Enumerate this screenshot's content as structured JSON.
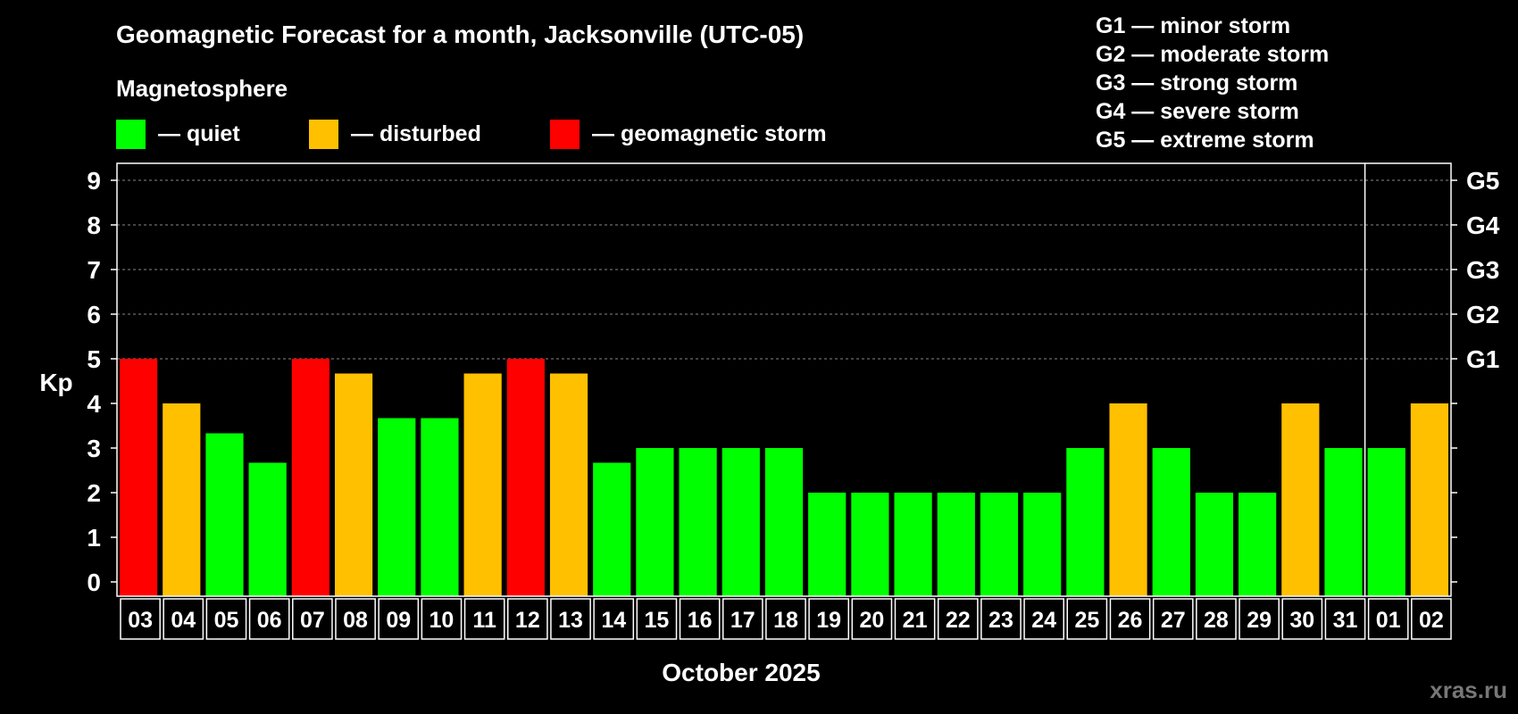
{
  "title": "Geomagnetic Forecast for a month, Jacksonville (UTC-05)",
  "legend_heading": "Magnetosphere",
  "legend": [
    {
      "label": "— quiet",
      "color": "#00ff00"
    },
    {
      "label": "— disturbed",
      "color": "#ffc000"
    },
    {
      "label": "— geomagnetic storm",
      "color": "#ff0000"
    }
  ],
  "g_scale": [
    "G1 — minor storm",
    "G2 — moderate storm",
    "G3 — strong storm",
    "G4 — severe storm",
    "G5 — extreme storm"
  ],
  "watermark": "xras.ru",
  "chart_data": {
    "type": "bar",
    "title": "Geomagnetic Forecast for a month, Jacksonville (UTC-05)",
    "xlabel": "October 2025",
    "ylabel": "Kp",
    "ylim": [
      0,
      9
    ],
    "yticks": [
      "0",
      "1",
      "2",
      "3",
      "4",
      "5",
      "6",
      "7",
      "8",
      "9"
    ],
    "right_axis_labels": [
      {
        "value": 5,
        "label": "G1"
      },
      {
        "value": 6,
        "label": "G2"
      },
      {
        "value": 7,
        "label": "G3"
      },
      {
        "value": 8,
        "label": "G4"
      },
      {
        "value": 9,
        "label": "G5"
      }
    ],
    "grid": "dashed horizontal at 5-9",
    "month_divider_after": "31",
    "categories": [
      "03",
      "04",
      "05",
      "06",
      "07",
      "08",
      "09",
      "10",
      "11",
      "12",
      "13",
      "14",
      "15",
      "16",
      "17",
      "18",
      "19",
      "20",
      "21",
      "22",
      "23",
      "24",
      "25",
      "26",
      "27",
      "28",
      "29",
      "30",
      "31",
      "01",
      "02"
    ],
    "values": [
      5,
      4,
      3.33,
      2.67,
      5,
      4.67,
      3.67,
      3.67,
      4.67,
      5,
      4.67,
      2.67,
      3,
      3,
      3,
      3,
      2,
      2,
      2,
      2,
      2,
      2,
      3,
      4,
      3,
      2,
      2,
      4,
      3,
      3,
      4
    ],
    "colors": [
      "#ff0000",
      "#ffc000",
      "#00ff00",
      "#00ff00",
      "#ff0000",
      "#ffc000",
      "#00ff00",
      "#00ff00",
      "#ffc000",
      "#ff0000",
      "#ffc000",
      "#00ff00",
      "#00ff00",
      "#00ff00",
      "#00ff00",
      "#00ff00",
      "#00ff00",
      "#00ff00",
      "#00ff00",
      "#00ff00",
      "#00ff00",
      "#00ff00",
      "#00ff00",
      "#ffc000",
      "#00ff00",
      "#00ff00",
      "#00ff00",
      "#ffc000",
      "#00ff00",
      "#00ff00",
      "#ffc000"
    ]
  }
}
